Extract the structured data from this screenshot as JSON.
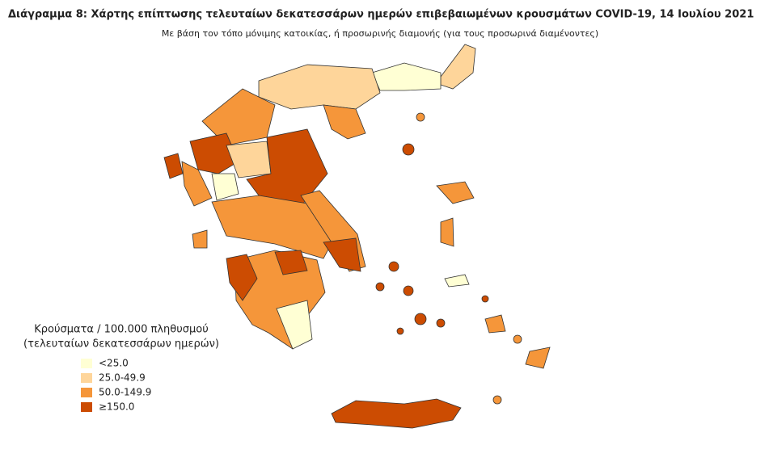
{
  "header": {
    "title": "Διάγραμμα 8: Χάρτης επίπτωσης τελευταίων δεκατεσσάρων ημερών επιβεβαιωμένων κρουσμάτων COVID-19, 14 Ιουλίου 2021",
    "subtitle": "Με βάση τον τόπο μόνιμης κατοικίας, ή προσωρινής διαμονής (για τους προσωρινά διαμένοντες)"
  },
  "legend": {
    "title": "Κρούσματα / 100.000 πληθυσμού",
    "subtitle": "(τελευταίων δεκατεσσάρων ημερών)",
    "items": [
      {
        "label": "<25.0",
        "color": "#ffffd4"
      },
      {
        "label": "25.0-49.9",
        "color": "#fed59a"
      },
      {
        "label": "50.0-149.9",
        "color": "#f5963a"
      },
      {
        "label": "≥150.0",
        "color": "#cc4c02"
      }
    ]
  }
}
